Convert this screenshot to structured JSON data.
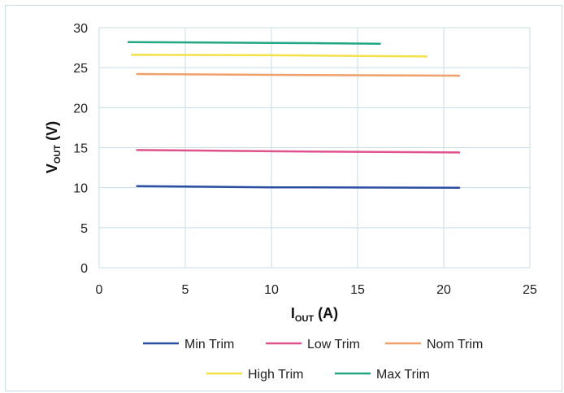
{
  "chart_data": {
    "type": "line",
    "title": "",
    "xlabel": {
      "main": "I",
      "sub": "OUT",
      "unit": " (A)"
    },
    "ylabel": {
      "main": "V",
      "sub": "OUT",
      "unit": " (V)"
    },
    "xlim": [
      0,
      25
    ],
    "ylim": [
      0,
      30
    ],
    "xticks": [
      "0",
      "5",
      "10",
      "15",
      "20",
      "25"
    ],
    "yticks": [
      "0",
      "5",
      "10",
      "15",
      "20",
      "25",
      "30"
    ],
    "grid": true,
    "legend_position": "bottom",
    "series": [
      {
        "name": "Min Trim",
        "color": "#2b4ea2",
        "x": [
          2.2,
          10,
          20.9
        ],
        "y": [
          10.2,
          10.05,
          10.0
        ]
      },
      {
        "name": "Low Trim",
        "color": "#e0528c",
        "x": [
          2.2,
          10,
          20.9
        ],
        "y": [
          14.7,
          14.55,
          14.4
        ]
      },
      {
        "name": "Nom Trim",
        "color": "#f0a06a",
        "x": [
          2.2,
          10,
          20.9
        ],
        "y": [
          24.2,
          24.1,
          24.0
        ]
      },
      {
        "name": "High Trim",
        "color": "#f4e14a",
        "x": [
          1.9,
          10,
          19.0
        ],
        "y": [
          26.6,
          26.55,
          26.4
        ]
      },
      {
        "name": "Max Trim",
        "color": "#22a683",
        "x": [
          1.7,
          10,
          16.3
        ],
        "y": [
          28.2,
          28.1,
          28.0
        ]
      }
    ]
  }
}
